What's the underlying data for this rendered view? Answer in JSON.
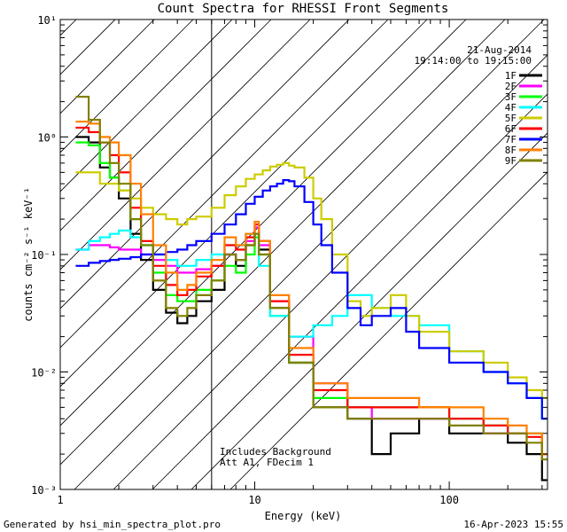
{
  "chart_data": {
    "type": "line",
    "title": "Count Spectra for RHESSI Front Segments",
    "xlabel": "Energy (keV)",
    "ylabel": "counts cm⁻² s⁻¹ keV⁻¹",
    "xscale": "log",
    "yscale": "log",
    "xlim": [
      1,
      320
    ],
    "ylim": [
      0.001,
      10
    ],
    "x_ticks": [
      {
        "value": 1,
        "label": "1"
      },
      {
        "value": 10,
        "label": "10"
      },
      {
        "value": 100,
        "label": "100"
      }
    ],
    "y_ticks": [
      {
        "value": 10,
        "label": "10¹"
      },
      {
        "value": 1,
        "label": "10⁰"
      },
      {
        "value": 0.1,
        "label": "10⁻¹"
      },
      {
        "value": 0.01,
        "label": "10⁻²"
      },
      {
        "value": 0.001,
        "label": "10⁻³"
      }
    ],
    "date": "21-Aug-2014",
    "time_range": "19:14:00 to 19:15:00",
    "annotations": [
      "Includes Background",
      "Att A1, FDecim 1"
    ],
    "footer_left": "Generated by hsi_min_spectra_plot.pro",
    "footer_right": "16-Apr-2023 15:55",
    "hatched_region": {
      "xmin": 1,
      "xmax": 6
    },
    "series": [
      {
        "name": "1F",
        "color": "#000000",
        "x": [
          1.2,
          1.4,
          1.6,
          1.8,
          2.0,
          2.3,
          2.6,
          3.0,
          3.5,
          4.0,
          4.5,
          5.0,
          6.0,
          7.0,
          8.0,
          9.0,
          10.0,
          10.5,
          12.0,
          15.0,
          20.0,
          30.0,
          40.0,
          50.0,
          70.0,
          100.0,
          150.0,
          200.0,
          250.0,
          300.0
        ],
        "y": [
          1.0,
          0.9,
          0.55,
          0.45,
          0.3,
          0.15,
          0.09,
          0.05,
          0.032,
          0.026,
          0.03,
          0.04,
          0.05,
          0.1,
          0.08,
          0.12,
          0.15,
          0.11,
          0.035,
          0.012,
          0.005,
          0.004,
          0.002,
          0.003,
          0.004,
          0.003,
          0.003,
          0.0025,
          0.002,
          0.0012
        ]
      },
      {
        "name": "2F",
        "color": "#ff00ff",
        "x": [
          1.2,
          1.4,
          1.6,
          1.8,
          2.0,
          2.3,
          2.6,
          3.0,
          3.5,
          4.0,
          4.5,
          5.0,
          6.0,
          7.0,
          8.0,
          9.0,
          10.0,
          10.5,
          12.0,
          15.0,
          20.0,
          30.0,
          40.0,
          50.0,
          70.0,
          100.0,
          150.0,
          200.0,
          250.0,
          300.0
        ],
        "y": [
          0.11,
          0.12,
          0.12,
          0.115,
          0.11,
          0.11,
          0.1,
          0.09,
          0.08,
          0.07,
          0.07,
          0.075,
          0.08,
          0.1,
          0.09,
          0.13,
          0.17,
          0.12,
          0.04,
          0.02,
          0.008,
          0.005,
          0.004,
          0.004,
          0.004,
          0.004,
          0.003,
          0.003,
          0.003,
          0.002
        ]
      },
      {
        "name": "3F",
        "color": "#00ff00",
        "x": [
          1.2,
          1.4,
          1.6,
          1.8,
          2.0,
          2.3,
          2.6,
          3.0,
          3.5,
          4.0,
          4.5,
          5.0,
          6.0,
          7.0,
          8.0,
          9.0,
          10.0,
          10.5,
          12.0,
          15.0,
          20.0,
          30.0,
          40.0,
          50.0,
          70.0,
          100.0,
          150.0,
          200.0,
          250.0,
          300.0
        ],
        "y": [
          0.9,
          0.85,
          0.6,
          0.45,
          0.35,
          0.2,
          0.12,
          0.07,
          0.045,
          0.04,
          0.04,
          0.05,
          0.06,
          0.08,
          0.07,
          0.1,
          0.14,
          0.1,
          0.03,
          0.012,
          0.006,
          0.005,
          0.005,
          0.005,
          0.005,
          0.004,
          0.0035,
          0.003,
          0.003,
          0.002
        ]
      },
      {
        "name": "4F",
        "color": "#00ffff",
        "x": [
          1.2,
          1.4,
          1.6,
          1.8,
          2.0,
          2.3,
          2.6,
          3.0,
          3.5,
          4.0,
          4.5,
          5.0,
          6.0,
          7.0,
          8.0,
          9.0,
          10.0,
          10.5,
          12.0,
          15.0,
          20.0,
          25.0,
          30.0,
          40.0,
          50.0,
          60.0,
          70.0,
          100.0,
          150.0,
          200.0,
          250.0,
          300.0
        ],
        "y": [
          0.11,
          0.13,
          0.14,
          0.15,
          0.16,
          0.14,
          0.12,
          0.1,
          0.09,
          0.08,
          0.08,
          0.09,
          0.1,
          0.12,
          0.12,
          0.15,
          0.15,
          0.08,
          0.03,
          0.02,
          0.025,
          0.03,
          0.045,
          0.035,
          0.03,
          0.03,
          0.025,
          0.015,
          0.01,
          0.008,
          0.006,
          0.004
        ]
      },
      {
        "name": "5F",
        "color": "#cccc00",
        "x": [
          1.2,
          1.4,
          1.6,
          1.8,
          2.0,
          2.3,
          2.6,
          3.0,
          3.5,
          4.0,
          4.5,
          5.0,
          6.0,
          7.0,
          8.0,
          9.0,
          10.0,
          11.0,
          12.0,
          13.0,
          14.0,
          15.0,
          16.0,
          18.0,
          20.0,
          22.0,
          25.0,
          30.0,
          35.0,
          40.0,
          50.0,
          60.0,
          70.0,
          100.0,
          150.0,
          200.0,
          250.0,
          300.0
        ],
        "y": [
          0.5,
          0.5,
          0.4,
          0.4,
          0.35,
          0.3,
          0.25,
          0.22,
          0.2,
          0.18,
          0.2,
          0.21,
          0.25,
          0.32,
          0.38,
          0.44,
          0.48,
          0.52,
          0.56,
          0.58,
          0.6,
          0.57,
          0.55,
          0.45,
          0.3,
          0.2,
          0.1,
          0.04,
          0.03,
          0.035,
          0.045,
          0.03,
          0.022,
          0.015,
          0.012,
          0.009,
          0.007,
          0.006
        ]
      },
      {
        "name": "6F",
        "color": "#ff0000",
        "x": [
          1.2,
          1.4,
          1.6,
          1.8,
          2.0,
          2.3,
          2.6,
          3.0,
          3.5,
          4.0,
          4.5,
          5.0,
          6.0,
          7.0,
          8.0,
          9.0,
          10.0,
          10.5,
          12.0,
          15.0,
          20.0,
          30.0,
          40.0,
          50.0,
          70.0,
          100.0,
          150.0,
          200.0,
          250.0,
          300.0
        ],
        "y": [
          1.2,
          1.1,
          0.9,
          0.7,
          0.5,
          0.25,
          0.13,
          0.08,
          0.055,
          0.045,
          0.05,
          0.065,
          0.08,
          0.12,
          0.11,
          0.14,
          0.18,
          0.13,
          0.04,
          0.014,
          0.007,
          0.005,
          0.005,
          0.005,
          0.005,
          0.004,
          0.0035,
          0.003,
          0.0028,
          0.002
        ]
      },
      {
        "name": "7F",
        "color": "#0000ff",
        "x": [
          1.2,
          1.4,
          1.6,
          1.8,
          2.0,
          2.3,
          2.6,
          3.0,
          3.5,
          4.0,
          4.5,
          5.0,
          6.0,
          7.0,
          8.0,
          9.0,
          10.0,
          11.0,
          12.0,
          13.0,
          14.0,
          15.0,
          16.0,
          18.0,
          20.0,
          22.0,
          25.0,
          30.0,
          35.0,
          40.0,
          50.0,
          60.0,
          70.0,
          100.0,
          150.0,
          200.0,
          250.0,
          300.0
        ],
        "y": [
          0.08,
          0.085,
          0.088,
          0.09,
          0.092,
          0.095,
          0.1,
          0.1,
          0.105,
          0.11,
          0.12,
          0.13,
          0.15,
          0.18,
          0.22,
          0.27,
          0.31,
          0.35,
          0.38,
          0.4,
          0.43,
          0.42,
          0.38,
          0.28,
          0.18,
          0.12,
          0.07,
          0.035,
          0.025,
          0.03,
          0.035,
          0.022,
          0.016,
          0.012,
          0.01,
          0.008,
          0.006,
          0.004
        ]
      },
      {
        "name": "8F",
        "color": "#ff8000",
        "x": [
          1.2,
          1.4,
          1.6,
          1.8,
          2.0,
          2.3,
          2.6,
          3.0,
          3.5,
          4.0,
          4.5,
          5.0,
          6.0,
          7.0,
          8.0,
          9.0,
          10.0,
          10.5,
          12.0,
          15.0,
          20.0,
          30.0,
          40.0,
          50.0,
          70.0,
          100.0,
          150.0,
          200.0,
          250.0,
          300.0
        ],
        "y": [
          1.35,
          1.3,
          1.0,
          0.9,
          0.7,
          0.4,
          0.22,
          0.12,
          0.07,
          0.05,
          0.055,
          0.07,
          0.09,
          0.14,
          0.12,
          0.15,
          0.19,
          0.13,
          0.045,
          0.016,
          0.008,
          0.006,
          0.006,
          0.006,
          0.005,
          0.005,
          0.004,
          0.0035,
          0.003,
          0.002
        ]
      },
      {
        "name": "9F",
        "color": "#808000",
        "x": [
          1.2,
          1.4,
          1.6,
          1.8,
          2.0,
          2.3,
          2.6,
          3.0,
          3.5,
          4.0,
          4.5,
          5.0,
          6.0,
          7.0,
          8.0,
          9.0,
          10.0,
          10.5,
          12.0,
          15.0,
          20.0,
          30.0,
          40.0,
          50.0,
          70.0,
          100.0,
          150.0,
          200.0,
          250.0,
          300.0
        ],
        "y": [
          2.2,
          1.4,
          0.9,
          0.6,
          0.4,
          0.2,
          0.12,
          0.06,
          0.035,
          0.03,
          0.035,
          0.045,
          0.06,
          0.1,
          0.09,
          0.12,
          0.15,
          0.1,
          0.035,
          0.012,
          0.005,
          0.004,
          0.004,
          0.004,
          0.004,
          0.0035,
          0.003,
          0.003,
          0.0025,
          0.0018
        ]
      }
    ]
  }
}
